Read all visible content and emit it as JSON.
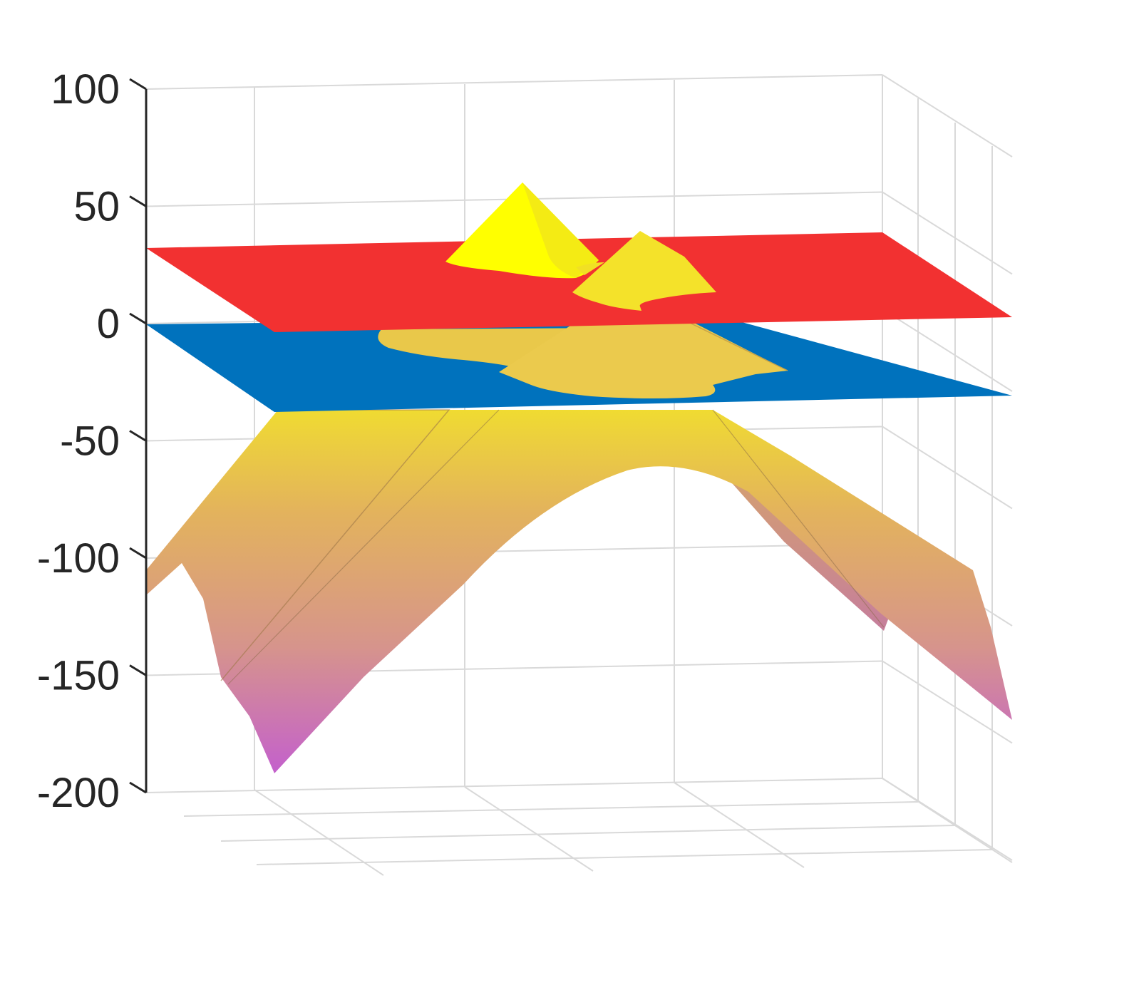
{
  "chart_data": {
    "type": "surface",
    "title": "",
    "xlabel": "",
    "ylabel": "",
    "zlabel": "",
    "zlim": [
      -200,
      100
    ],
    "z_ticks": [
      100,
      50,
      0,
      -50,
      -100,
      -150,
      -200
    ],
    "grid": true,
    "legend": "none",
    "planes": [
      {
        "z": 30,
        "color": "#f23131"
      },
      {
        "z": -3,
        "color": "#0072bd"
      }
    ],
    "surface": {
      "peak_z": 57,
      "secondary_peak_z": 36,
      "min_z": -192,
      "colormap": [
        "#c35fce",
        "#d6948c",
        "#e3b35c",
        "#f2e22a",
        "#ffff00"
      ]
    }
  },
  "colors": {
    "axis": "#262626",
    "grid": "#d9d9d9"
  }
}
